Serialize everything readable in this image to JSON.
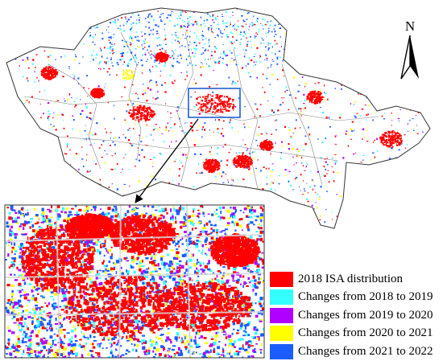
{
  "north_arrow": {
    "label": "N",
    "icon": "north-arrow-icon"
  },
  "colors": {
    "isa_2018": "#ff0000",
    "change_2018_2019": "#33ffff",
    "change_2019_2020": "#b000ff",
    "change_2020_2021": "#ffff00",
    "change_2021_2022": "#1a5cff",
    "boundary": "#555555",
    "inset_frame": "#1f5fd0"
  },
  "legend": [
    {
      "label": "2018 ISA distribution",
      "color": "#ff0000"
    },
    {
      "label": "Changes from 2018 to 2019",
      "color": "#33ffff"
    },
    {
      "label": "Changes from 2019 to 2020",
      "color": "#b000ff"
    },
    {
      "label": "Changes from 2020 to 2021",
      "color": "#ffff00"
    },
    {
      "label": "Changes from 2021 to 2022",
      "color": "#1a5cff"
    }
  ]
}
